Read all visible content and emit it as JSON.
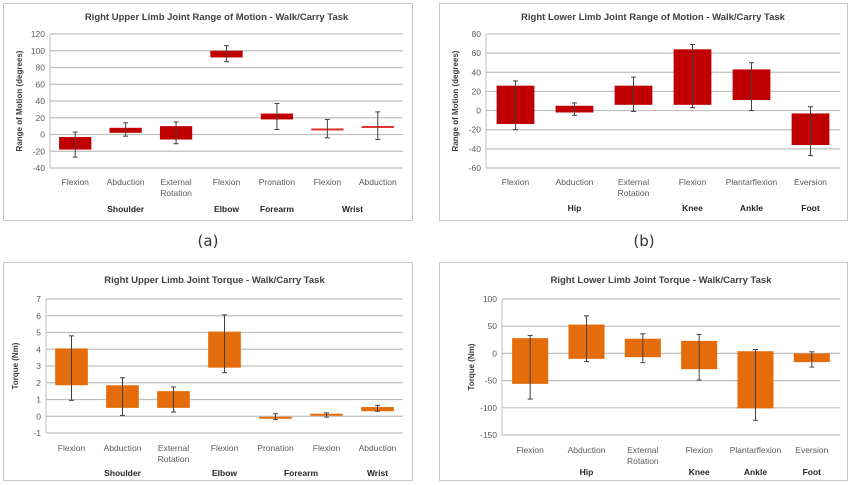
{
  "captions": [
    "(a)",
    "(b)"
  ],
  "chart_data": [
    {
      "id": "a",
      "type": "bar",
      "subtype": "floating-range-with-error-bars",
      "title": "Right Upper Limb Joint Range of Motion - Walk/Carry Task",
      "ylabel": "Range of Motion (degrees)",
      "xlabel": "",
      "ylim": [
        -40,
        120
      ],
      "yticks": [
        -40,
        -20,
        0,
        20,
        40,
        60,
        80,
        100,
        120
      ],
      "grid": true,
      "color": "#c00000",
      "categories": [
        "Flexion",
        "Abduction",
        "External Rotation",
        "Flexion",
        "Pronation",
        "Flexion",
        "Abduction"
      ],
      "groups": [
        {
          "label": "Shoulder",
          "start": 0,
          "span": 3
        },
        {
          "label": "Elbow",
          "start": 3,
          "span": 1
        },
        {
          "label": "Forearm",
          "start": 4,
          "span": 1
        },
        {
          "label": "Wrist",
          "start": 5,
          "span": 2
        }
      ],
      "box_top": [
        -3,
        8,
        10,
        100,
        25,
        6.5,
        9.5
      ],
      "box_bottom": [
        -18,
        2,
        -6,
        92,
        18,
        5.5,
        8.5
      ],
      "whisker_top": [
        3,
        14,
        15,
        106,
        37,
        18,
        27
      ],
      "whisker_bottom": [
        -27,
        -2,
        -11,
        87,
        6,
        -4,
        -6
      ]
    },
    {
      "id": "b",
      "type": "bar",
      "subtype": "floating-range-with-error-bars",
      "title": "Right Lower Limb Joint Range of Motion - Walk/Carry Task",
      "ylabel": "Range of Motion (degrees)",
      "xlabel": "",
      "ylim": [
        -60,
        80
      ],
      "yticks": [
        -60,
        -40,
        -20,
        0,
        20,
        40,
        60,
        80
      ],
      "grid": true,
      "color": "#c00000",
      "categories": [
        "Flexion",
        "Abduction",
        "External Rotation",
        "Flexion",
        "Plantarflexion",
        "Eversion"
      ],
      "groups": [
        {
          "label": "Hip",
          "start": 0,
          "span": 3
        },
        {
          "label": "Knee",
          "start": 3,
          "span": 1
        },
        {
          "label": "Ankle",
          "start": 4,
          "span": 1
        },
        {
          "label": "Foot",
          "start": 5,
          "span": 1
        }
      ],
      "box_top": [
        26,
        5,
        26,
        64,
        43,
        -3
      ],
      "box_bottom": [
        -14,
        -2,
        6,
        6,
        11,
        -36
      ],
      "whisker_top": [
        31,
        8,
        35,
        69,
        50,
        4
      ],
      "whisker_bottom": [
        -20,
        -5,
        -1,
        3,
        0,
        -47
      ]
    },
    {
      "id": "c",
      "type": "bar",
      "subtype": "floating-range-with-error-bars",
      "title": "Right Upper Limb Joint Torque - Walk/Carry Task",
      "ylabel": "Torque (Nm)",
      "xlabel": "",
      "ylim": [
        -1,
        7
      ],
      "yticks": [
        -1,
        0,
        1,
        2,
        3,
        4,
        5,
        6,
        7
      ],
      "grid": true,
      "color": "#e46c0a",
      "categories": [
        "Flexion",
        "Abduction",
        "External Rotation",
        "Flexion",
        "Pronation",
        "Flexion",
        "Abduction"
      ],
      "groups": [
        {
          "label": "Shoulder",
          "start": 0,
          "span": 3
        },
        {
          "label": "Elbow",
          "start": 3,
          "span": 1
        },
        {
          "label": "Forearm",
          "start": 4,
          "span": 2
        },
        {
          "label": "Wrist",
          "start": 6,
          "span": 1
        }
      ],
      "box_top": [
        4.05,
        1.85,
        1.5,
        5.05,
        -0.03,
        0.15,
        0.55
      ],
      "box_bottom": [
        1.85,
        0.5,
        0.5,
        2.9,
        -0.1,
        0.05,
        0.3
      ],
      "whisker_top": [
        4.8,
        2.3,
        1.75,
        6.05,
        0.15,
        0.2,
        0.65
      ],
      "whisker_bottom": [
        0.95,
        0.05,
        0.25,
        2.6,
        -0.2,
        -0.05,
        0.3
      ]
    },
    {
      "id": "d",
      "type": "bar",
      "subtype": "floating-range-with-error-bars",
      "title": "Right Lower Limb Joint Torque - Walk/Carry Task",
      "ylabel": "Torque (Nm)",
      "xlabel": "",
      "ylim": [
        -150,
        100
      ],
      "yticks": [
        -150,
        -100,
        -50,
        0,
        50,
        100
      ],
      "grid": true,
      "color": "#e46c0a",
      "categories": [
        "Flexion",
        "Abduction",
        "External Rotation",
        "Flexion",
        "Plantarflexion",
        "Eversion"
      ],
      "groups": [
        {
          "label": "Hip",
          "start": 0,
          "span": 3
        },
        {
          "label": "Knee",
          "start": 3,
          "span": 1
        },
        {
          "label": "Ankle",
          "start": 4,
          "span": 1
        },
        {
          "label": "Foot",
          "start": 5,
          "span": 1
        }
      ],
      "box_top": [
        28,
        53,
        27,
        23,
        4,
        0
      ],
      "box_bottom": [
        -56,
        -10,
        -7,
        -29,
        -101,
        -16
      ],
      "whisker_top": [
        33,
        69,
        36,
        35,
        7,
        3
      ],
      "whisker_bottom": [
        -84,
        -15,
        -17,
        -49,
        -123,
        -25
      ]
    }
  ]
}
